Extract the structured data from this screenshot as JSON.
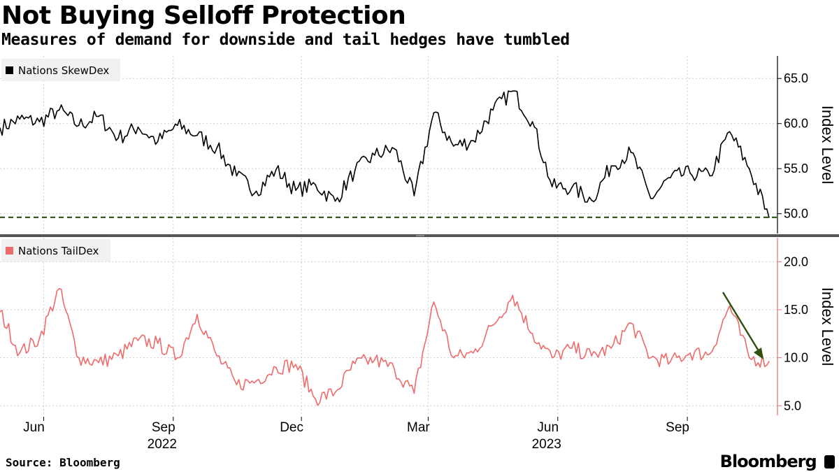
{
  "header": {
    "title": "Not Buying Selloff Protection",
    "subtitle": "Measures of demand for downside and tail hedges have tumbled"
  },
  "footer": {
    "source": "Source: Bloomberg",
    "brand": "Bloomberg"
  },
  "colors": {
    "skew": "#000000",
    "tail": "#ef6a6a",
    "reference": "#2f4f0f",
    "grid": "#cccccc"
  },
  "chart_data": [
    {
      "type": "line",
      "legend": "Nations SkewDex",
      "ylabel": "Index Level",
      "ylim": [
        47.8,
        67.5
      ],
      "yticks": [
        "50.0",
        "55.0",
        "60.0",
        "65.0"
      ],
      "reference_line": 49.6,
      "x": [
        "2022-05-01",
        "2022-05-15",
        "2022-05-29",
        "2022-06-12",
        "2022-06-26",
        "2022-07-10",
        "2022-07-24",
        "2022-08-07",
        "2022-08-21",
        "2022-09-04",
        "2022-09-18",
        "2022-10-02",
        "2022-10-16",
        "2022-10-30",
        "2022-11-13",
        "2022-11-27",
        "2022-12-11",
        "2022-12-25",
        "2023-01-08",
        "2023-01-22",
        "2023-02-05",
        "2023-02-19",
        "2023-03-05",
        "2023-03-19",
        "2023-04-02",
        "2023-04-16",
        "2023-04-30",
        "2023-05-14",
        "2023-05-28",
        "2023-06-11",
        "2023-06-25",
        "2023-07-09",
        "2023-07-23",
        "2023-08-06",
        "2023-08-20",
        "2023-09-03",
        "2023-09-17",
        "2023-10-01",
        "2023-10-15",
        "2023-10-29"
      ],
      "values": [
        59.5,
        60.5,
        60.2,
        61.5,
        59.8,
        60.8,
        58.4,
        59.6,
        58.0,
        59.8,
        58.7,
        57.3,
        54.2,
        52.5,
        54.9,
        52.6,
        53.2,
        51.4,
        54.8,
        56.5,
        57.2,
        52.0,
        61.2,
        57.5,
        58.1,
        61.5,
        63.6,
        60.2,
        53.0,
        52.9,
        51.5,
        55.3,
        56.8,
        51.7,
        54.0,
        54.5,
        54.2,
        59.1,
        55.0,
        49.6
      ]
    },
    {
      "type": "line",
      "legend": "Nations TailDex",
      "ylabel": "Index Level",
      "ylim": [
        4.0,
        22.5
      ],
      "yticks": [
        "5.0",
        "10.0",
        "15.0",
        "20.0"
      ],
      "x": [
        "2022-05-01",
        "2022-05-15",
        "2022-05-29",
        "2022-06-12",
        "2022-06-26",
        "2022-07-10",
        "2022-07-24",
        "2022-08-07",
        "2022-08-21",
        "2022-09-04",
        "2022-09-18",
        "2022-10-02",
        "2022-10-16",
        "2022-10-30",
        "2022-11-13",
        "2022-11-27",
        "2022-12-11",
        "2022-12-25",
        "2023-01-08",
        "2023-01-22",
        "2023-02-05",
        "2023-02-19",
        "2023-03-05",
        "2023-03-19",
        "2023-04-02",
        "2023-04-16",
        "2023-04-30",
        "2023-05-14",
        "2023-05-28",
        "2023-06-11",
        "2023-06-25",
        "2023-07-09",
        "2023-07-23",
        "2023-08-06",
        "2023-08-20",
        "2023-09-03",
        "2023-09-17",
        "2023-10-01",
        "2023-10-15",
        "2023-10-29"
      ],
      "values": [
        14.8,
        10.5,
        12.0,
        17.2,
        10.0,
        9.5,
        10.2,
        11.8,
        11.5,
        10.0,
        14.5,
        10.2,
        7.2,
        7.6,
        9.0,
        9.3,
        5.7,
        6.4,
        9.4,
        9.8,
        8.8,
        6.3,
        15.8,
        10.0,
        10.5,
        13.4,
        16.5,
        12.5,
        10.0,
        11.0,
        10.2,
        11.0,
        13.6,
        10.0,
        9.6,
        10.5,
        10.4,
        15.4,
        10.0,
        9.6
      ],
      "annotation": "downward-arrow"
    }
  ],
  "x_axis": {
    "ticks": [
      {
        "date": "2022-06-01",
        "label": "Jun"
      },
      {
        "date": "2022-09-01",
        "label": "Sep"
      },
      {
        "date": "2022-12-01",
        "label": "Dec"
      },
      {
        "date": "2023-03-01",
        "label": "Mar"
      },
      {
        "date": "2023-06-01",
        "label": "Jun"
      },
      {
        "date": "2023-09-01",
        "label": "Sep"
      }
    ],
    "years": [
      {
        "date": "2022-09-01",
        "label": "2022"
      },
      {
        "date": "2023-06-01",
        "label": "2023"
      }
    ],
    "range": [
      "2022-05-01",
      "2023-11-03"
    ]
  }
}
